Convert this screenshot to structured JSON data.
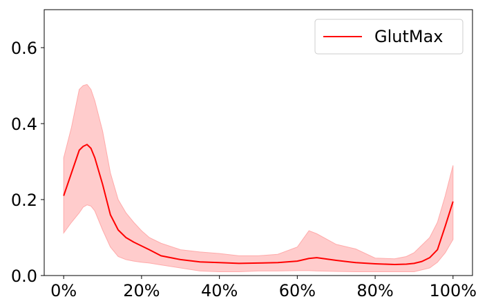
{
  "chart_data": {
    "type": "line",
    "title": "",
    "xlabel": "",
    "ylabel": "",
    "xlim": [
      -5,
      105
    ],
    "ylim": [
      0,
      0.7
    ],
    "xticks": [
      0,
      20,
      40,
      60,
      80,
      100
    ],
    "xtick_labels": [
      "0%",
      "20%",
      "40%",
      "60%",
      "80%",
      "100%"
    ],
    "yticks": [
      0.0,
      0.2,
      0.4,
      0.6
    ],
    "ytick_labels": [
      "0.0",
      "0.2",
      "0.4",
      "0.6"
    ],
    "grid": false,
    "legend_position": "top-right",
    "series": [
      {
        "name": "GlutMax",
        "color": "#ff0000",
        "band_color": "#ffcccc",
        "x": [
          0,
          2,
          4,
          5,
          6,
          7,
          8,
          10,
          12,
          14,
          16,
          18,
          20,
          22,
          25,
          30,
          35,
          40,
          45,
          50,
          55,
          60,
          63,
          65,
          70,
          75,
          80,
          85,
          88,
          90,
          92,
          94,
          96,
          98,
          100
        ],
        "mean": [
          0.21,
          0.27,
          0.33,
          0.34,
          0.345,
          0.335,
          0.31,
          0.24,
          0.16,
          0.12,
          0.1,
          0.088,
          0.078,
          0.068,
          0.052,
          0.042,
          0.036,
          0.034,
          0.032,
          0.033,
          0.034,
          0.038,
          0.045,
          0.047,
          0.04,
          0.034,
          0.031,
          0.029,
          0.03,
          0.032,
          0.037,
          0.047,
          0.068,
          0.13,
          0.195
        ],
        "upper": [
          0.31,
          0.39,
          0.49,
          0.5,
          0.503,
          0.49,
          0.46,
          0.38,
          0.27,
          0.2,
          0.165,
          0.14,
          0.118,
          0.1,
          0.085,
          0.068,
          0.062,
          0.058,
          0.052,
          0.052,
          0.056,
          0.075,
          0.118,
          0.11,
          0.082,
          0.07,
          0.046,
          0.044,
          0.05,
          0.06,
          0.08,
          0.1,
          0.14,
          0.21,
          0.29
        ],
        "lower": [
          0.112,
          0.14,
          0.165,
          0.18,
          0.186,
          0.183,
          0.17,
          0.12,
          0.075,
          0.05,
          0.042,
          0.038,
          0.035,
          0.033,
          0.028,
          0.02,
          0.012,
          0.01,
          0.01,
          0.012,
          0.012,
          0.013,
          0.013,
          0.012,
          0.011,
          0.01,
          0.01,
          0.01,
          0.01,
          0.01,
          0.015,
          0.02,
          0.035,
          0.06,
          0.095
        ]
      }
    ]
  }
}
